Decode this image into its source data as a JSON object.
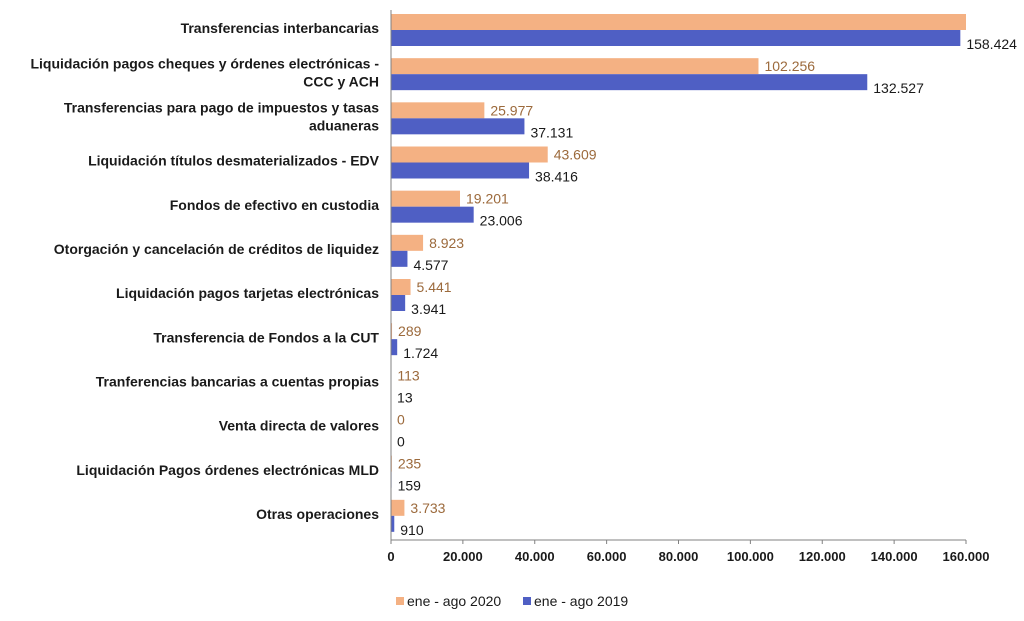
{
  "chart_data": {
    "type": "bar",
    "orientation": "horizontal",
    "categories": [
      [
        "Transferencias interbancarias"
      ],
      [
        "Liquidación pagos cheques y órdenes electrónicas -",
        "CCC y ACH"
      ],
      [
        "Transferencias para pago de impuestos y tasas",
        "aduaneras"
      ],
      [
        "Liquidación títulos desmaterializados - EDV"
      ],
      [
        "Fondos de efectivo en custodia"
      ],
      [
        "Otorgación y cancelación de créditos de liquidez"
      ],
      [
        "Liquidación pagos tarjetas electrónicas"
      ],
      [
        "Transferencia de Fondos a la CUT"
      ],
      [
        "Tranferencias bancarias a cuentas propias"
      ],
      [
        "Venta directa de valores"
      ],
      [
        "Liquidación Pagos órdenes electrónicas MLD"
      ],
      [
        "Otras operaciones"
      ]
    ],
    "series": [
      {
        "name": "ene - ago 2020",
        "color": "#F4B183",
        "label_color": "#9C6A3C",
        "values": [
          160000,
          102256,
          25977,
          43609,
          19201,
          8923,
          5441,
          289,
          113,
          0,
          235,
          3733
        ],
        "labels": [
          "",
          "102.256",
          "25.977",
          "43.609",
          "19.201",
          "8.923",
          "5.441",
          "289",
          "113",
          "0",
          "235",
          "3.733"
        ]
      },
      {
        "name": "ene - ago 2019",
        "color": "#4F5FC4",
        "label_color": "#1a1a1a",
        "values": [
          158424,
          132527,
          37131,
          38416,
          23006,
          4577,
          3941,
          1724,
          13,
          0,
          159,
          910
        ],
        "labels": [
          "158.424",
          "132.527",
          "37.131",
          "38.416",
          "23.006",
          "4.577",
          "3.941",
          "1.724",
          "13",
          "0",
          "159",
          "910"
        ]
      }
    ],
    "xlim": [
      0,
      160000
    ],
    "xticks": [
      0,
      20000,
      40000,
      60000,
      80000,
      100000,
      120000,
      140000,
      160000
    ],
    "xtick_labels": [
      "0",
      "20.000",
      "40.000",
      "60.000",
      "80.000",
      "100.000",
      "120.000",
      "140.000",
      "160.000"
    ],
    "grid": false,
    "legend_position": "bottom"
  }
}
